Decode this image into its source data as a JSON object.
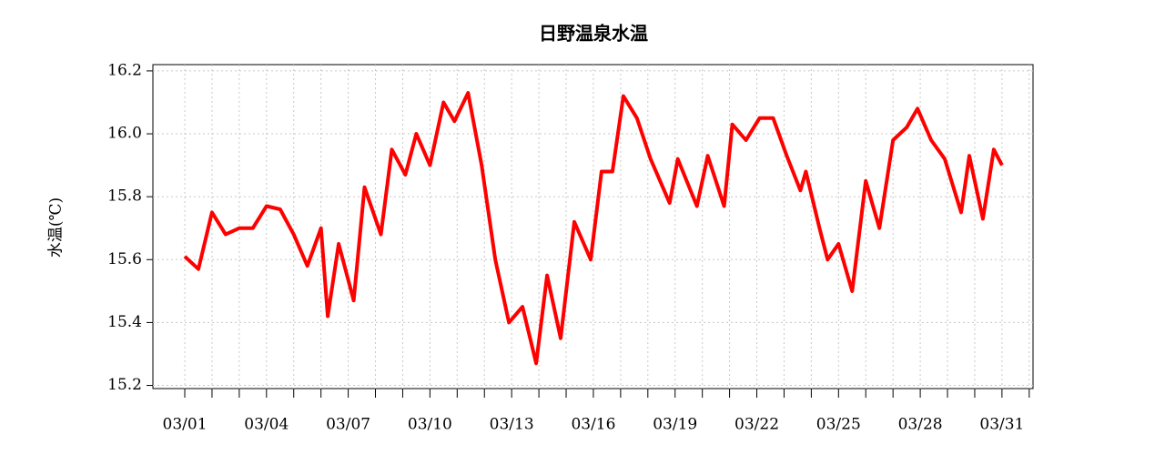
{
  "chart_data": {
    "type": "line",
    "title": "日野温泉水温",
    "ylabel": "水温(℃)",
    "x": [
      0,
      0.5,
      1,
      1.5,
      2,
      2.5,
      3,
      3.5,
      4,
      4.5,
      5,
      5.25,
      5.65,
      6.2,
      6.6,
      7.2,
      7.6,
      8.1,
      8.5,
      9.0,
      9.5,
      9.9,
      10.4,
      10.9,
      11.4,
      11.9,
      12.4,
      12.9,
      13.3,
      13.8,
      14.3,
      14.9,
      15.3,
      15.7,
      16.1,
      16.6,
      17.1,
      17.8,
      18.1,
      18.8,
      19.2,
      19.8,
      20.1,
      20.6,
      21.1,
      21.6,
      22.1,
      22.6,
      22.8,
      23.3,
      23.6,
      24.0,
      24.5,
      25.0,
      25.5,
      26.0,
      26.5,
      26.9,
      27.4,
      27.9,
      28.5,
      28.8,
      29.3,
      29.7,
      30.0
    ],
    "values": [
      15.61,
      15.57,
      15.75,
      15.68,
      15.7,
      15.7,
      15.77,
      15.76,
      15.68,
      15.58,
      15.7,
      15.42,
      15.65,
      15.47,
      15.83,
      15.68,
      15.95,
      15.87,
      16.0,
      15.9,
      16.1,
      16.04,
      16.13,
      15.9,
      15.6,
      15.4,
      15.45,
      15.27,
      15.55,
      15.35,
      15.72,
      15.6,
      15.88,
      15.88,
      16.12,
      16.05,
      15.92,
      15.78,
      15.92,
      15.77,
      15.93,
      15.77,
      16.03,
      15.98,
      16.05,
      16.05,
      15.93,
      15.82,
      15.88,
      15.7,
      15.6,
      15.65,
      15.5,
      15.85,
      15.7,
      15.98,
      16.02,
      16.08,
      15.98,
      15.92,
      15.75,
      15.93,
      15.73,
      15.95,
      15.9
    ],
    "color": "#ff0000",
    "xlim": [
      -1.17,
      31.14
    ],
    "xticks": [
      {
        "value": 0,
        "label": "03/01"
      },
      {
        "value": 3,
        "label": "03/04"
      },
      {
        "value": 6,
        "label": "03/07"
      },
      {
        "value": 9,
        "label": "03/10"
      },
      {
        "value": 12,
        "label": "03/13"
      },
      {
        "value": 15,
        "label": "03/16"
      },
      {
        "value": 18,
        "label": "03/19"
      },
      {
        "value": 21,
        "label": "03/22"
      },
      {
        "value": 24,
        "label": "03/25"
      },
      {
        "value": 27,
        "label": "03/28"
      },
      {
        "value": 30,
        "label": "03/31"
      }
    ],
    "xminor": [
      0,
      1,
      2,
      3,
      4,
      5,
      6,
      7,
      8,
      9,
      10,
      11,
      12,
      13,
      14,
      15,
      16,
      17,
      18,
      19,
      20,
      21,
      22,
      23,
      24,
      25,
      26,
      27,
      28,
      29,
      30,
      31
    ],
    "ylim": [
      15.19,
      16.22
    ],
    "yticks": [
      15.2,
      15.4,
      15.6,
      15.8,
      {
        "value": 16,
        "label": "16.0"
      },
      16.2
    ],
    "grid": true
  }
}
